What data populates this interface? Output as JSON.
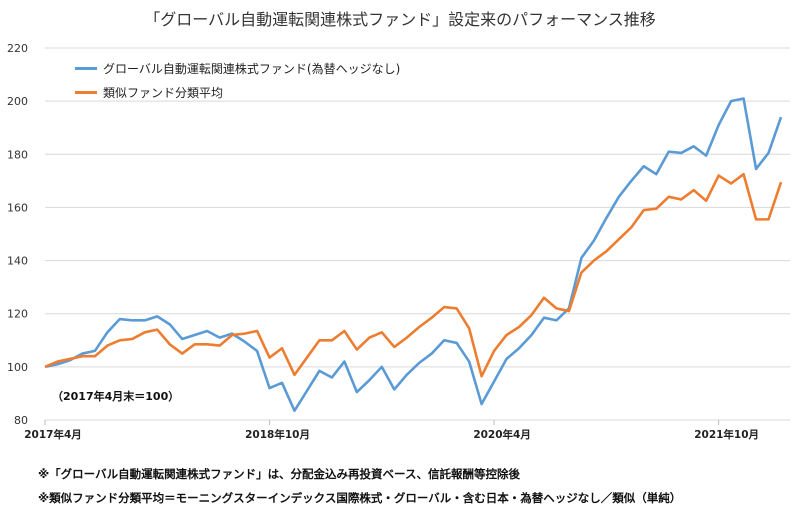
{
  "chart_data": {
    "type": "line",
    "title": "「グローバル自動運転関連株式ファンド」設定来のパフォーマンス推移",
    "xlabel": "",
    "ylabel": "",
    "ylim": [
      80,
      220
    ],
    "yticks": [
      80,
      100,
      120,
      140,
      160,
      180,
      200,
      220
    ],
    "xtick_labels": [
      {
        "index": 0,
        "label": "2017年4月"
      },
      {
        "index": 18,
        "label": "2018年10月"
      },
      {
        "index": 36,
        "label": "2020年4月"
      },
      {
        "index": 54,
        "label": "2021年10月"
      }
    ],
    "grid": true,
    "legend_position": "top-left",
    "annotation": "（2017年4月末＝100）",
    "series": [
      {
        "name": "グローバル自動運転関連株式ファンド(為替ヘッジなし)",
        "color": "#5b9bd5",
        "values": [
          100,
          101,
          102.5,
          105,
          106,
          113,
          118,
          117.5,
          117.5,
          119,
          116,
          110.5,
          112,
          113.5,
          111,
          112.5,
          109.5,
          106,
          92,
          94,
          83.5,
          91,
          98.5,
          96,
          102,
          90.5,
          95,
          100,
          91.5,
          97,
          101.5,
          105,
          110,
          109,
          102,
          86,
          94.5,
          103,
          107,
          112,
          118.5,
          117.5,
          122,
          141,
          147.5,
          156,
          164,
          170,
          175.5,
          172.5,
          181,
          180.5,
          183,
          179.5,
          191,
          200,
          201,
          174.5,
          180.5,
          194
        ]
      },
      {
        "name": "類似ファンド分類平均",
        "color": "#ed7d31",
        "values": [
          100,
          102,
          103,
          104,
          104,
          108,
          110,
          110.5,
          113,
          114,
          108.5,
          105,
          108.5,
          108.5,
          108,
          112,
          112.5,
          113.5,
          103.5,
          107,
          97,
          103.5,
          110,
          110,
          113.5,
          106.5,
          111,
          113,
          107.5,
          111,
          115,
          118.5,
          122.5,
          122,
          114.5,
          96.5,
          106,
          112,
          115,
          119.5,
          126,
          122,
          121,
          135.5,
          140,
          143.5,
          148,
          152.5,
          159,
          159.5,
          164,
          163,
          166.5,
          162.5,
          172,
          169,
          172.5,
          155.5,
          155.5,
          169.5
        ]
      }
    ]
  },
  "footnotes": [
    "※「グローバル自動運転関連株式ファンド」は、分配金込み再投資ベース、信託報酬等控除後",
    "※類似ファンド分類平均＝モーニングスターインデックス国際株式・グローバル・含む日本・為替ヘッジなし／類似（単純）"
  ]
}
